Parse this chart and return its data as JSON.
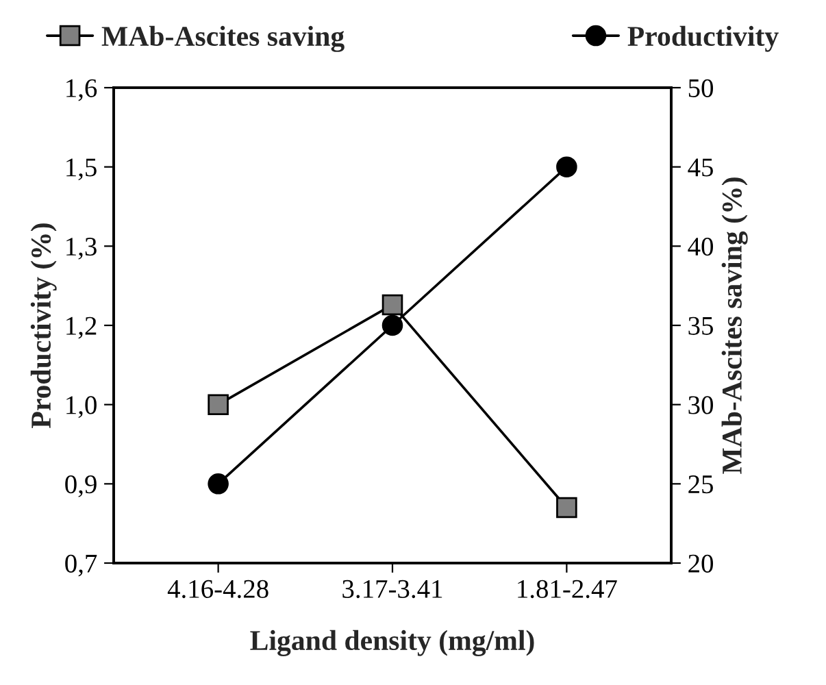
{
  "chart_data": {
    "type": "line",
    "xlabel": "Ligand density (mg/ml)",
    "ylabel": "Productivity (%)",
    "y2label": "MAb-Ascites saving (%)",
    "categories": [
      "4.16-4.28",
      "3.17-3.41",
      "1.81-2.47"
    ],
    "series": [
      {
        "name": "MAb-Ascites saving",
        "color": "#808080",
        "values": [
          30,
          36.3,
          23.5
        ],
        "axis": "y2",
        "marker": "square"
      },
      {
        "name": "Productivity",
        "color": "#000000",
        "values": [
          0.85,
          1.15,
          1.45
        ],
        "marker": "circle"
      }
    ],
    "ylim": [
      0.7,
      1.6
    ],
    "yticks": [
      {
        "value": 0.7,
        "label": "0,7"
      },
      {
        "value": 0.85,
        "label": "0,9"
      },
      {
        "value": 1.0,
        "label": "1,0"
      },
      {
        "value": 1.15,
        "label": "1,2"
      },
      {
        "value": 1.3,
        "label": "1,3"
      },
      {
        "value": 1.45,
        "label": "1,5"
      },
      {
        "value": 1.6,
        "label": "1,6"
      }
    ],
    "y2lim": [
      20,
      50
    ],
    "y2ticks": [
      20,
      25,
      30,
      35,
      40,
      45,
      50
    ],
    "legend": "top",
    "grid": false,
    "line_style": "solid"
  }
}
